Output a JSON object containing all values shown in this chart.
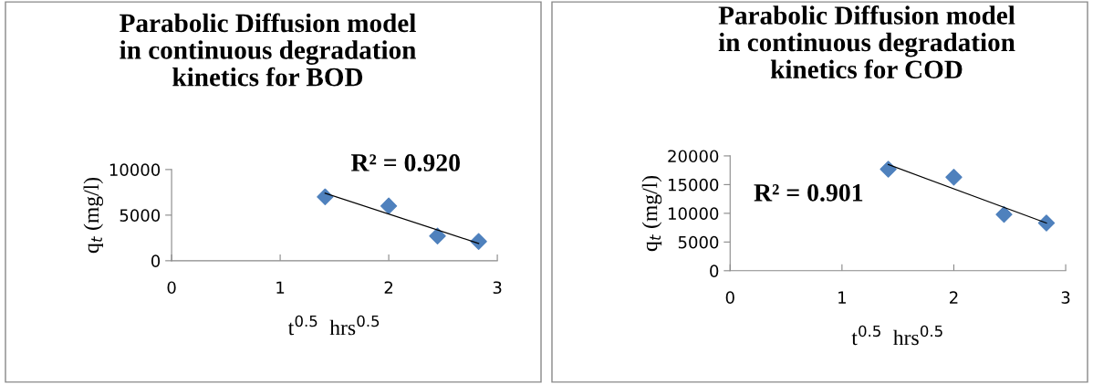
{
  "chart_data": [
    {
      "type": "scatter",
      "title": "Parabolic Diffusion model in continuous degradation kinetics for BOD",
      "xlabel": "t$^{0.5}$  hrs$^{0.5}$",
      "ylabel": "q$_{t}$ (mg/l)",
      "annotations": [
        "R² = 0.920"
      ],
      "xlim": [
        0,
        3
      ],
      "xticks": [
        0,
        1,
        2,
        3
      ],
      "ylim": [
        0,
        10000
      ],
      "yticks": [
        0,
        5000,
        10000
      ],
      "grid": false,
      "series": [
        {
          "color": "#4f81bd",
          "marker": "diamond",
          "x": [
            1.414,
            2.0,
            2.449,
            2.828
          ],
          "values": [
            7000,
            6000,
            2700,
            2100
          ]
        },
        {
          "type": "line",
          "marker": "none",
          "color": "#000000",
          "x": [
            1.414,
            2.828
          ],
          "values": [
            7400,
            1900
          ]
        }
      ]
    },
    {
      "type": "scatter",
      "title": "Parabolic Diffusion model in continuous degradation kinetics for COD",
      "xlabel": "t$^{0.5}$  hrs$^{0.5}$",
      "ylabel": "q$_{t}$ (mg/l)",
      "annotations": [
        "R² = 0.901"
      ],
      "xlim": [
        0,
        3
      ],
      "xticks": [
        0,
        1,
        2,
        3
      ],
      "ylim": [
        0,
        20000
      ],
      "yticks": [
        0,
        5000,
        10000,
        15000,
        20000
      ],
      "grid": false,
      "series": [
        {
          "color": "#4f81bd",
          "marker": "diamond",
          "x": [
            1.414,
            2.0,
            2.449,
            2.828
          ],
          "values": [
            17700,
            16300,
            9800,
            8300
          ]
        },
        {
          "type": "line",
          "marker": "none",
          "color": "#000000",
          "x": [
            1.414,
            2.828
          ],
          "values": [
            18500,
            8300
          ]
        }
      ]
    }
  ]
}
